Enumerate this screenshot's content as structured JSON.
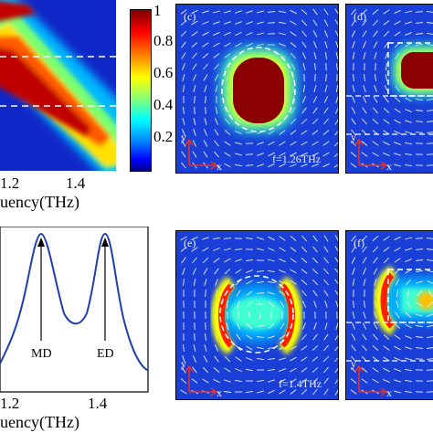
{
  "top_map": {
    "x_ticks": [
      "1.2",
      "1.4"
    ],
    "x_label": "uency(THz)"
  },
  "colorbar": {
    "ticks": [
      "1",
      "0.8",
      "0.6",
      "0.4",
      "0.2"
    ]
  },
  "spectrum": {
    "x_ticks": [
      "1.2",
      "1.4"
    ],
    "x_label": "uency(THz)",
    "peak_labels": [
      "MD",
      "ED"
    ]
  },
  "panels": [
    {
      "id": "c",
      "label": "(c)",
      "freq_label": "f=1.26THz",
      "axis_y": "y",
      "axis_x": "x"
    },
    {
      "id": "d",
      "label": "(d)",
      "axis_y": "y",
      "axis_x": "x"
    },
    {
      "id": "e",
      "label": "(e)",
      "freq_label": "f=1.4THz",
      "axis_y": "y",
      "axis_x": "x"
    },
    {
      "id": "f",
      "label": "(f)",
      "axis_y": "y",
      "axis_x": "x"
    }
  ],
  "colors": {
    "field_background": "#1a3fd6",
    "hot": "#8b0000",
    "curve": "#1f3fb0"
  }
}
